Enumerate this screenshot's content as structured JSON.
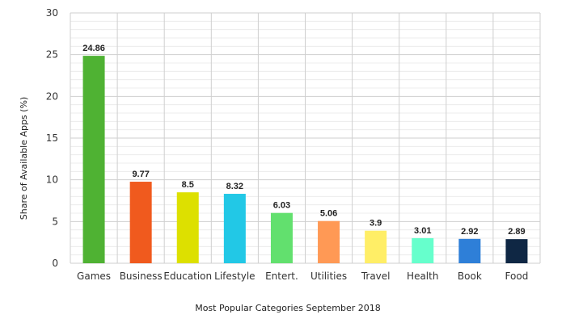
{
  "chart_data": {
    "type": "bar",
    "title": "",
    "xlabel": "Most Popular Categories September 2018",
    "ylabel": "Share of Available Apps (%)",
    "ylim": [
      0,
      30
    ],
    "yticks": [
      0,
      5,
      10,
      15,
      20,
      25,
      30
    ],
    "grid": true,
    "legend": "none",
    "categories": [
      "Games",
      "Business",
      "Education",
      "Lifestyle",
      "Entert.",
      "Utilities",
      "Travel",
      "Health",
      "Book",
      "Food"
    ],
    "values": [
      24.86,
      9.77,
      8.5,
      8.32,
      6.03,
      5.06,
      3.9,
      3.01,
      2.92,
      2.89
    ],
    "data_labels": [
      "24.86",
      "9.77",
      "8.5",
      "8.32",
      "6.03",
      "5.06",
      "3.9",
      "3.01",
      "2.92",
      "2.89"
    ],
    "colors": [
      "#4fb233",
      "#f05a1e",
      "#dde000",
      "#22c8e6",
      "#62e06e",
      "#ff9955",
      "#ffee66",
      "#66ffcc",
      "#2e7fd8",
      "#0f2744"
    ]
  }
}
